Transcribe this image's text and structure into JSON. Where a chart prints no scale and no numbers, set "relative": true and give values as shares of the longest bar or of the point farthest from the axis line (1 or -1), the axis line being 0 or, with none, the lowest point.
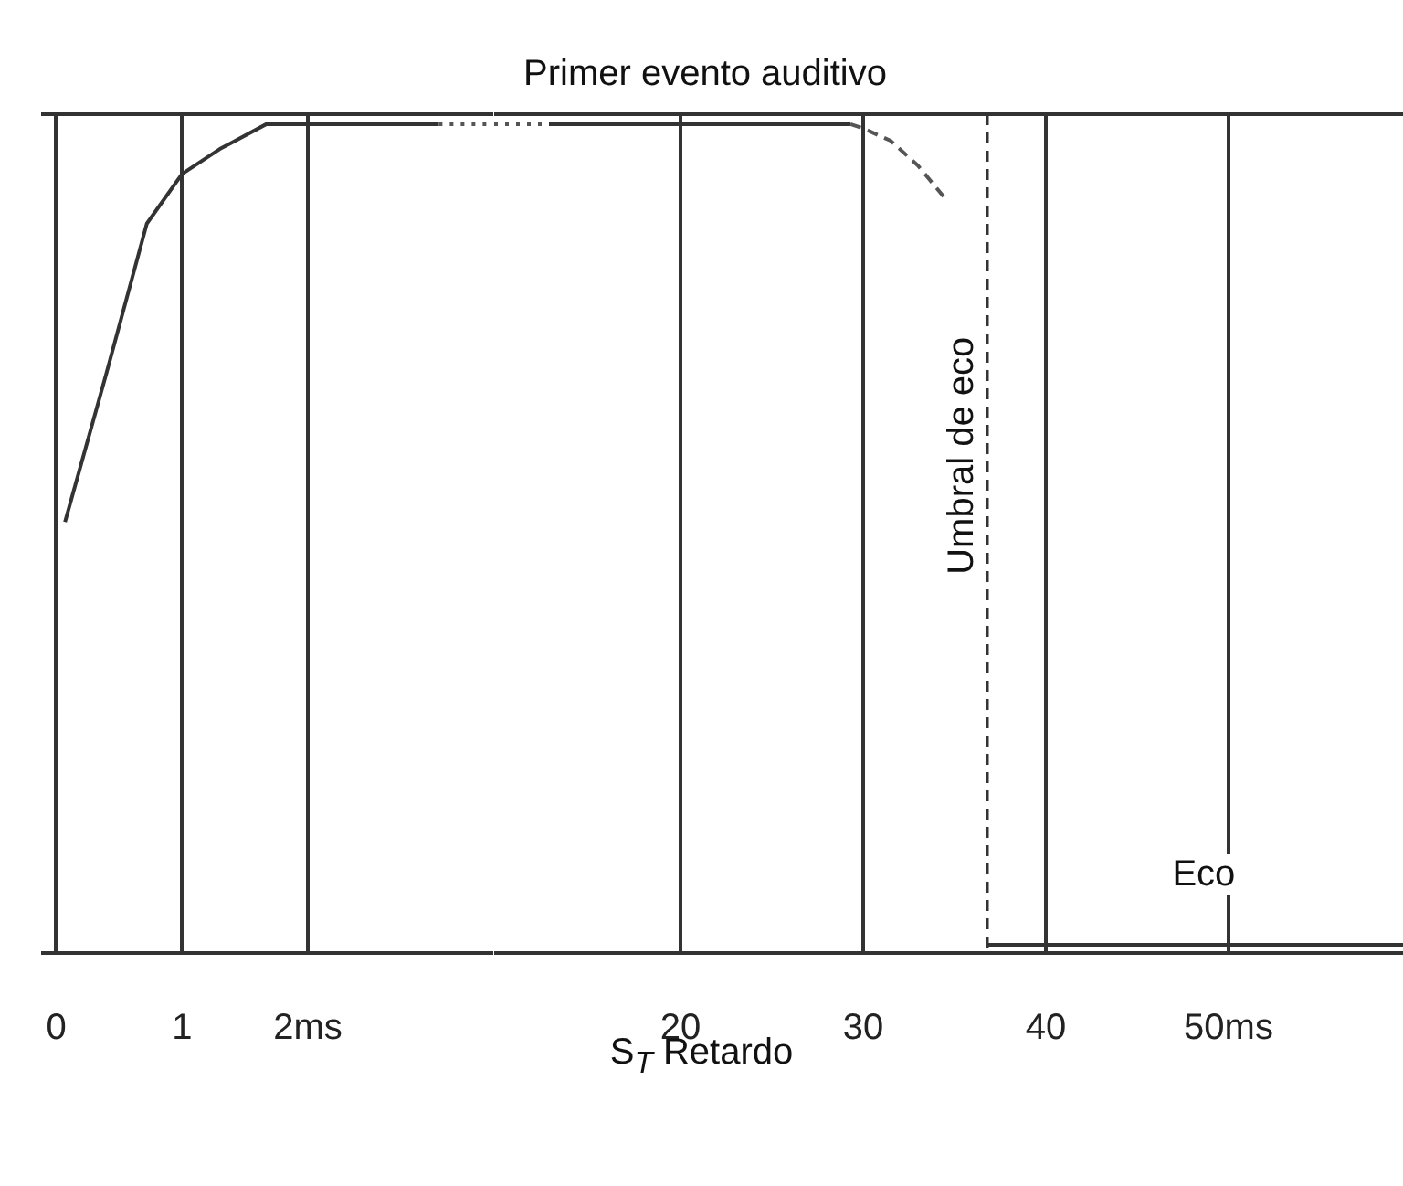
{
  "chart_data": [
    {
      "type": "line",
      "relative": true,
      "grid": "x",
      "tick_labels": "x",
      "xlim": [
        -0.12,
        3.48
      ],
      "xticks": [
        0,
        1,
        {
          "value": 2,
          "label": "2ms"
        }
      ],
      "series": [
        {
          "color": "#333333",
          "line_style": "solid",
          "x": [
            0.07,
            0.4,
            0.72,
            1.0,
            1.3,
            1.67,
            2.2,
            3.04
          ],
          "values": [
            0.52,
            0.7,
            0.88,
            0.94,
            0.97,
            1.0,
            1.0,
            1.0
          ]
        },
        {
          "color": "#555555",
          "line_style": "dotted",
          "x": [
            3.04,
            3.48
          ],
          "values": [
            1.0,
            1.0
          ]
        }
      ]
    },
    {
      "type": "line",
      "title": "Primer evento auditivo",
      "xlabel": "S$_{T}$ Retardo",
      "relative": true,
      "grid": "x",
      "tick_labels": "x",
      "xlim": [
        9.8,
        59.6
      ],
      "xticks": [
        20,
        30,
        40,
        {
          "value": 50,
          "label": "50ms"
        }
      ],
      "series": [
        {
          "color": "#555555",
          "line_style": "dotted",
          "x": [
            9.8,
            12.8
          ],
          "values": [
            1.0,
            1.0
          ]
        },
        {
          "color": "#333333",
          "line_style": "solid",
          "x": [
            12.8,
            29.3
          ],
          "values": [
            1.0,
            1.0
          ]
        },
        {
          "color": "#555555",
          "line_style": "dashed",
          "x": [
            29.3,
            30,
            31.5,
            33,
            34.5
          ],
          "values": [
            1.0,
            0.995,
            0.98,
            0.95,
            0.91
          ]
        },
        {
          "color": "#333333",
          "line_style": "solid",
          "x": [
            36.8,
            59.6
          ],
          "values": [
            0.01,
            0.01
          ]
        }
      ],
      "ref_lines": [
        {
          "axis": "x",
          "value": 36.8,
          "label": "Umbral de eco",
          "color": "#333333",
          "line_style": "dashed"
        }
      ],
      "annotations": [
        "Eco"
      ]
    }
  ]
}
